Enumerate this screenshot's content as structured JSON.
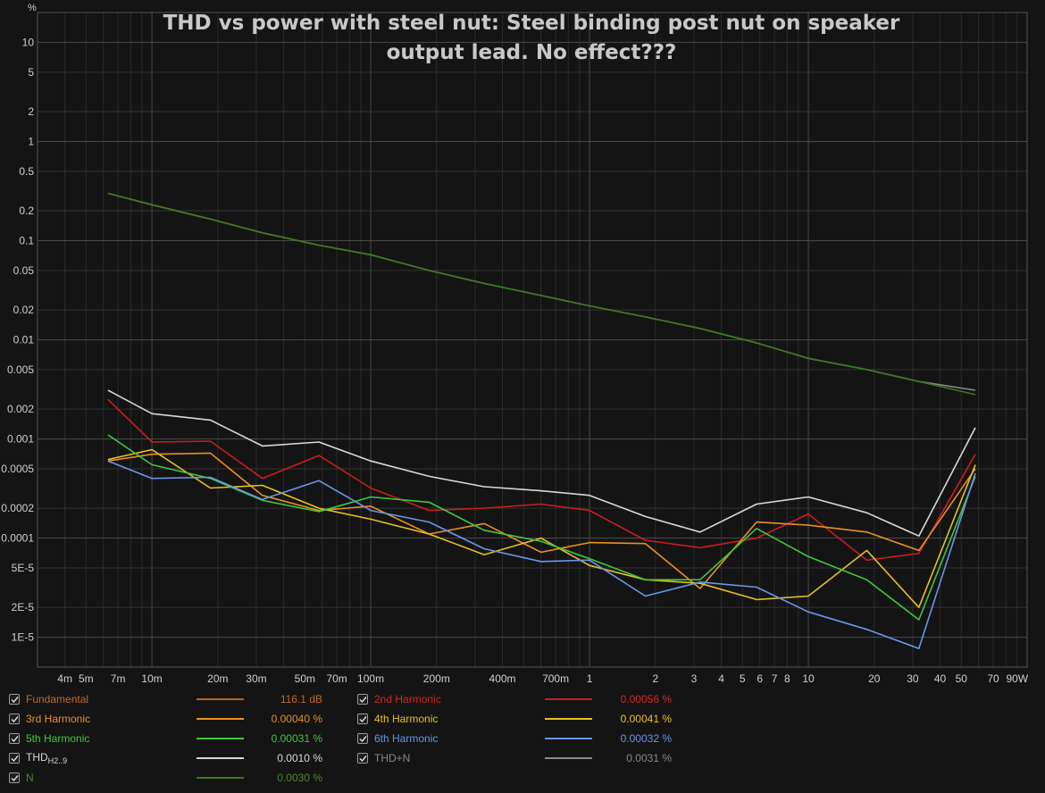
{
  "title_line1": "THD vs power with steel nut: Steel binding post nut on speaker",
  "title_line2": "output lead. No effect???",
  "colors": {
    "background": "#141414",
    "grid_major": "#4a4a4a",
    "grid_minor": "#2b2b2b",
    "axis_text": "#d0d0d0"
  },
  "chart_data": {
    "type": "line",
    "x_scale": "log",
    "y_scale": "log",
    "xlim": [
      0.003,
      100
    ],
    "ylim": [
      5e-06,
      20
    ],
    "y_unit": "%",
    "x_unit": "W",
    "grid": true,
    "x_ticks": [
      {
        "v": 0.004,
        "label": "4m"
      },
      {
        "v": 0.005,
        "label": "5m"
      },
      {
        "v": 0.007,
        "label": "7m"
      },
      {
        "v": 0.01,
        "label": "10m"
      },
      {
        "v": 0.02,
        "label": "20m"
      },
      {
        "v": 0.03,
        "label": "30m"
      },
      {
        "v": 0.05,
        "label": "50m"
      },
      {
        "v": 0.07,
        "label": "70m"
      },
      {
        "v": 0.1,
        "label": "100m"
      },
      {
        "v": 0.2,
        "label": "200m"
      },
      {
        "v": 0.4,
        "label": "400m"
      },
      {
        "v": 0.7,
        "label": "700m"
      },
      {
        "v": 1,
        "label": "1"
      },
      {
        "v": 2,
        "label": "2"
      },
      {
        "v": 3,
        "label": "3"
      },
      {
        "v": 4,
        "label": "4"
      },
      {
        "v": 5,
        "label": "5"
      },
      {
        "v": 6,
        "label": "6"
      },
      {
        "v": 7,
        "label": "7"
      },
      {
        "v": 8,
        "label": "8"
      },
      {
        "v": 10,
        "label": "10"
      },
      {
        "v": 20,
        "label": "20"
      },
      {
        "v": 30,
        "label": "30"
      },
      {
        "v": 40,
        "label": "40"
      },
      {
        "v": 50,
        "label": "50"
      },
      {
        "v": 70,
        "label": "70"
      },
      {
        "v": 90,
        "label": "90W"
      }
    ],
    "y_ticks": [
      {
        "v": 10,
        "label": "10"
      },
      {
        "v": 5,
        "label": "5"
      },
      {
        "v": 2,
        "label": "2"
      },
      {
        "v": 1,
        "label": "1"
      },
      {
        "v": 0.5,
        "label": "0.5"
      },
      {
        "v": 0.2,
        "label": "0.2"
      },
      {
        "v": 0.1,
        "label": "0.1"
      },
      {
        "v": 0.05,
        "label": "0.05"
      },
      {
        "v": 0.02,
        "label": "0.02"
      },
      {
        "v": 0.01,
        "label": "0.01"
      },
      {
        "v": 0.005,
        "label": "0.005"
      },
      {
        "v": 0.002,
        "label": "0.002"
      },
      {
        "v": 0.001,
        "label": "0.001"
      },
      {
        "v": 0.0005,
        "label": "0.0005"
      },
      {
        "v": 0.0002,
        "label": "0.0002"
      },
      {
        "v": 0.0001,
        "label": "0.0001"
      },
      {
        "v": 5e-05,
        "label": "5E-5"
      },
      {
        "v": 2e-05,
        "label": "2E-5"
      },
      {
        "v": 1e-05,
        "label": "1E-5"
      }
    ],
    "x": [
      0.0063,
      0.01,
      0.0185,
      0.032,
      0.058,
      0.1,
      0.185,
      0.33,
      0.6,
      1.0,
      1.8,
      3.2,
      5.8,
      10.0,
      18.5,
      32.0,
      58.0
    ],
    "series": [
      {
        "name": "THD+N",
        "color": "#8a8a8a",
        "values": [
          0.3,
          0.23,
          0.165,
          0.12,
          0.09,
          0.072,
          0.05,
          0.037,
          0.028,
          0.022,
          0.017,
          0.013,
          0.0093,
          0.0065,
          0.005,
          0.0038,
          0.0031
        ]
      },
      {
        "name": "N",
        "color": "#3d7a1e",
        "values": [
          0.3,
          0.23,
          0.165,
          0.12,
          0.09,
          0.072,
          0.05,
          0.037,
          0.028,
          0.022,
          0.017,
          0.013,
          0.0093,
          0.0065,
          0.005,
          0.0038,
          0.0028
        ]
      },
      {
        "name": "THD H2..9",
        "color": "#d8d8d8",
        "values": [
          0.0031,
          0.0018,
          0.00155,
          0.00085,
          0.00093,
          0.0006,
          0.00042,
          0.00033,
          0.0003,
          0.00027,
          0.000165,
          0.000115,
          0.00022,
          0.00026,
          0.00018,
          0.000105,
          0.0013
        ]
      },
      {
        "name": "2nd Harmonic",
        "color": "#c81e1e",
        "values": [
          0.0025,
          0.00093,
          0.00095,
          0.0004,
          0.00068,
          0.00032,
          0.00019,
          0.0002,
          0.00022,
          0.00019,
          9.5e-05,
          8e-05,
          0.0001,
          0.000175,
          6e-05,
          7e-05,
          0.0007
        ]
      },
      {
        "name": "3rd Harmonic",
        "color": "#e89020",
        "values": [
          0.0006,
          0.0007,
          0.00072,
          0.00027,
          0.00019,
          0.00021,
          0.00011,
          0.00014,
          7.2e-05,
          9e-05,
          8.8e-05,
          3.1e-05,
          0.000145,
          0.000135,
          0.000115,
          7.5e-05,
          0.0005
        ]
      },
      {
        "name": "4th Harmonic",
        "color": "#e8c020",
        "values": [
          0.00062,
          0.00078,
          0.00032,
          0.00034,
          0.0002,
          0.000155,
          0.00011,
          6.8e-05,
          0.0001,
          5.3e-05,
          3.8e-05,
          3.5e-05,
          2.4e-05,
          2.6e-05,
          7.5e-05,
          2e-05,
          0.00055
        ]
      },
      {
        "name": "5th Harmonic",
        "color": "#3ec83e",
        "values": [
          0.0011,
          0.00055,
          0.0004,
          0.00024,
          0.000185,
          0.00026,
          0.00023,
          0.00012,
          9.3e-05,
          6.2e-05,
          3.8e-05,
          3.8e-05,
          0.000125,
          6.5e-05,
          3.8e-05,
          1.5e-05,
          0.00042
        ]
      },
      {
        "name": "6th Harmonic",
        "color": "#6a96e8",
        "values": [
          0.0006,
          0.0004,
          0.00041,
          0.000245,
          0.00038,
          0.00019,
          0.000145,
          7.8e-05,
          5.8e-05,
          6e-05,
          2.6e-05,
          3.6e-05,
          3.2e-05,
          1.8e-05,
          1.2e-05,
          7.7e-06,
          0.00045
        ]
      }
    ]
  },
  "legend": [
    {
      "label": "Fundamental",
      "sub": "",
      "value": "116.1 dB",
      "color": "#b86420",
      "text_color": "#c06a28",
      "checked": true
    },
    {
      "label": "2nd Harmonic",
      "sub": "",
      "value": "0.00056 %",
      "color": "#c81e1e",
      "text_color": "#d02828",
      "checked": true
    },
    {
      "label": "3rd Harmonic",
      "sub": "",
      "value": "0.00040 %",
      "color": "#e89020",
      "text_color": "#e89020",
      "checked": true
    },
    {
      "label": "4th Harmonic",
      "sub": "",
      "value": "0.00041 %",
      "color": "#e8c020",
      "text_color": "#e8c020",
      "checked": true
    },
    {
      "label": "5th Harmonic",
      "sub": "",
      "value": "0.00031 %",
      "color": "#3ec83e",
      "text_color": "#3ec83e",
      "checked": true
    },
    {
      "label": "6th Harmonic",
      "sub": "",
      "value": "0.00032 %",
      "color": "#6a96e8",
      "text_color": "#6a96e8",
      "checked": true
    },
    {
      "label": "THD",
      "sub": "H2..9",
      "value": "0.0010 %",
      "color": "#d8d8d8",
      "text_color": "#d8d8d8",
      "checked": true
    },
    {
      "label": "THD+N",
      "sub": "",
      "value": "0.0031 %",
      "color": "#8a8a8a",
      "text_color": "#8a8a8a",
      "checked": true
    },
    {
      "label": "N",
      "sub": "",
      "value": "0.0030 %",
      "color": "#3d7a1e",
      "text_color": "#4a8a26",
      "checked": true
    }
  ]
}
